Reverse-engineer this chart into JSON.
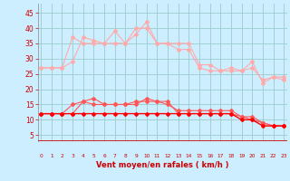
{
  "x": [
    0,
    1,
    2,
    3,
    4,
    5,
    6,
    7,
    8,
    9,
    10,
    11,
    12,
    13,
    14,
    15,
    16,
    17,
    18,
    19,
    20,
    21,
    22,
    23
  ],
  "line1": [
    27,
    27,
    27,
    37,
    35,
    35,
    35,
    39,
    35,
    40,
    40,
    35,
    35,
    33,
    33,
    27,
    26,
    26,
    26,
    26,
    29,
    22,
    24,
    23
  ],
  "line2": [
    27,
    27,
    27,
    29,
    37,
    36,
    35,
    35,
    35,
    38,
    42,
    35,
    35,
    35,
    35,
    28,
    28,
    26,
    27,
    26,
    27,
    23,
    24,
    24
  ],
  "line3": [
    12,
    12,
    12,
    12,
    16,
    15,
    15,
    15,
    15,
    16,
    16,
    16,
    15,
    13,
    13,
    13,
    13,
    13,
    13,
    11,
    10,
    9,
    8,
    8
  ],
  "line4": [
    12,
    12,
    12,
    15,
    16,
    17,
    15,
    15,
    15,
    15,
    17,
    16,
    16,
    12,
    12,
    12,
    12,
    12,
    12,
    11,
    11,
    9,
    8,
    8
  ],
  "line5": [
    12,
    12,
    12,
    12,
    12,
    12,
    12,
    12,
    12,
    12,
    12,
    12,
    12,
    12,
    12,
    12,
    12,
    12,
    12,
    10,
    10,
    8,
    8,
    8
  ],
  "bg_color": "#cceeff",
  "grid_color": "#99cccc",
  "line1_color": "#ffaaaa",
  "line2_color": "#ffaaaa",
  "line3_color": "#ff5555",
  "line4_color": "#ff5555",
  "line5_color": "#ff0000",
  "xlabel": "Vent moyen/en rafales ( km/h )",
  "xlabel_color": "#cc0000",
  "tick_color": "#cc0000",
  "arrow_color": "#cc0000",
  "red_line_color": "#cc0000",
  "ylim": [
    3,
    48
  ],
  "yticks": [
    5,
    10,
    15,
    20,
    25,
    30,
    35,
    40,
    45
  ],
  "xlim": [
    -0.3,
    23.3
  ]
}
